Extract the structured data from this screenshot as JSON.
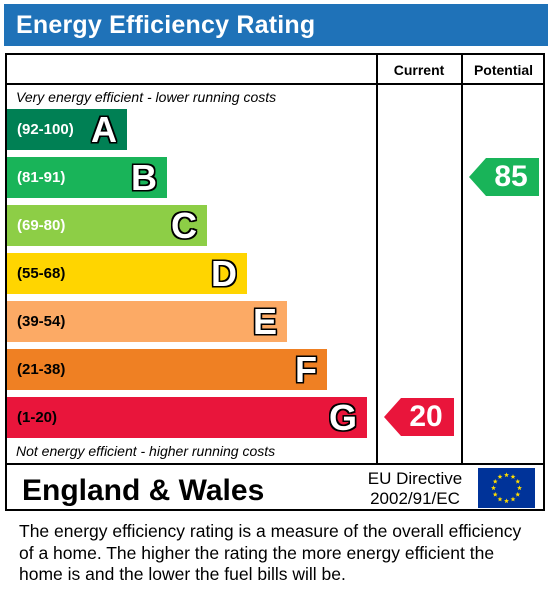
{
  "title": "Energy Efficiency Rating",
  "columns": {
    "current": "Current",
    "potential": "Potential"
  },
  "notes": {
    "top": "Very energy efficient - lower running costs",
    "bottom": "Not energy efficient - higher running costs"
  },
  "chart_data": {
    "type": "bar",
    "categories": [
      "A",
      "B",
      "C",
      "D",
      "E",
      "F",
      "G"
    ],
    "ranges": [
      "(92-100)",
      "(81-91)",
      "(69-80)",
      "(55-68)",
      "(39-54)",
      "(21-38)",
      "(1-20)"
    ],
    "colors": [
      "#008054",
      "#19b459",
      "#8dce46",
      "#ffd500",
      "#fcaa65",
      "#ef8023",
      "#e9153b"
    ],
    "current": {
      "value": 20,
      "band": "G",
      "color": "#e9153b"
    },
    "potential": {
      "value": 85,
      "band": "B",
      "color": "#19b459"
    }
  },
  "footer": {
    "region": "England & Wales",
    "directive_line1": "EU Directive",
    "directive_line2": "2002/91/EC",
    "flag_color": "#003399",
    "star_color": "#ffdd00"
  },
  "description": "The energy efficiency rating is a measure of the overall efficiency of a home.  The higher the rating the more energy efficient the home is and the lower the fuel bills will be."
}
